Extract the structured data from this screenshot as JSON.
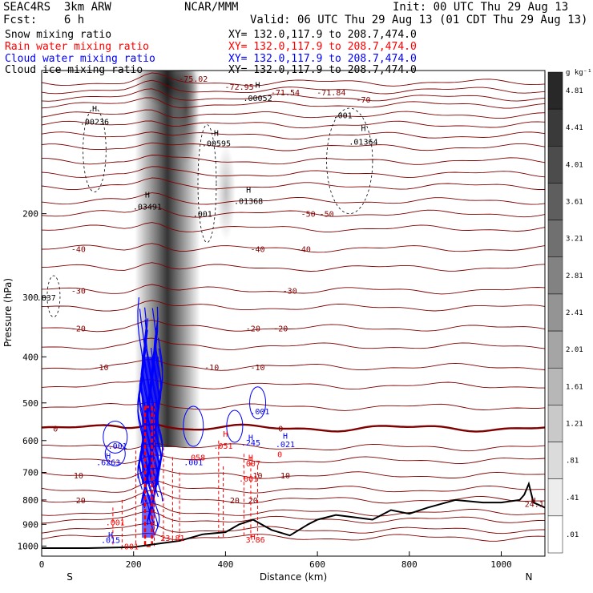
{
  "header": {
    "model": "SEAC4RS  3km ARW",
    "org": "NCAR/MMM",
    "init": "Init: 00 UTC Thu 29 Aug 13",
    "fcst": "Fcst:    6 h",
    "valid": "Valid: 06 UTC Thu 29 Aug 13 (01 CDT Thu 29 Aug 13)"
  },
  "fields": [
    {
      "label": "Snow mixing ratio",
      "xy": "XY= 132.0,117.9 to 208.7,474.0",
      "color": "#000000"
    },
    {
      "label": "Rain water mixing ratio",
      "xy": "XY= 132.0,117.9 to 208.7,474.0",
      "color": "#ff0000"
    },
    {
      "label": "Cloud water mixing ratio",
      "xy": "XY= 132.0,117.9 to 208.7,474.0",
      "color": "#0000ff"
    },
    {
      "label": "Cloud ice mixing ratio",
      "xy": "XY= 132.0,117.9 to 208.7,474.0",
      "color": "#000000"
    }
  ],
  "chart_data": {
    "type": "cross-section",
    "xlabel": "Distance (km)",
    "ylabel": "Pressure (hPa)",
    "xlim": [
      0,
      1095
    ],
    "ylim": [
      1050,
      100
    ],
    "y_log": true,
    "x_ticks": [
      0,
      200,
      400,
      600,
      800,
      1000
    ],
    "y_ticks": [
      200,
      300,
      400,
      500,
      600,
      700,
      800,
      900,
      1000
    ],
    "x_end_labels": {
      "left": "S",
      "right": "N"
    },
    "colorbar": {
      "unit": "g kg⁻¹",
      "labels": [
        "4.81",
        "4.41",
        "4.01",
        "3.61",
        "3.21",
        "2.81",
        "2.41",
        "2.01",
        "1.61",
        "1.21",
        ".81",
        ".41",
        ".01"
      ]
    },
    "temperature_isotherms": [
      {
        "label": "-72.95",
        "p": 108
      },
      {
        "label": "-71.54",
        "p": 111
      },
      {
        "label": "-71.84",
        "p": 111
      },
      {
        "label": "-70",
        "p": 115
      },
      {
        "label": "-75.02",
        "p": 104
      },
      {
        "label": "-50",
        "p": 200
      },
      {
        "label": "-40",
        "p": 237
      },
      {
        "label": "-30",
        "p": 290
      },
      {
        "label": "-20",
        "p": 348
      },
      {
        "label": "-10",
        "p": 420
      },
      {
        "label": "0",
        "p": 565
      },
      {
        "label": "10",
        "p": 710
      },
      {
        "label": "20",
        "p": 800
      }
    ],
    "terrain": [
      [
        0,
        1010
      ],
      [
        100,
        1010
      ],
      [
        200,
        1005
      ],
      [
        250,
        990
      ],
      [
        300,
        975
      ],
      [
        350,
        945
      ],
      [
        400,
        935
      ],
      [
        430,
        900
      ],
      [
        460,
        880
      ],
      [
        500,
        925
      ],
      [
        540,
        950
      ],
      [
        580,
        900
      ],
      [
        600,
        880
      ],
      [
        640,
        860
      ],
      [
        680,
        870
      ],
      [
        720,
        880
      ],
      [
        760,
        840
      ],
      [
        800,
        855
      ],
      [
        840,
        830
      ],
      [
        860,
        820
      ],
      [
        900,
        800
      ],
      [
        960,
        810
      ],
      [
        1000,
        810
      ],
      [
        1040,
        800
      ],
      [
        1050,
        780
      ],
      [
        1060,
        740
      ],
      [
        1070,
        810
      ],
      [
        1095,
        830
      ]
    ],
    "annotations": [
      {
        "text": "H",
        "x": 115,
        "p": 120,
        "color": "#000000"
      },
      {
        "text": ".00236",
        "x": 115,
        "p": 128,
        "color": "#000000"
      },
      {
        "text": "H",
        "x": 380,
        "p": 135,
        "color": "#000000"
      },
      {
        "text": ".00595",
        "x": 380,
        "p": 142,
        "color": "#000000"
      },
      {
        "text": "H",
        "x": 470,
        "p": 107,
        "color": "#000000"
      },
      {
        "text": ".00052",
        "x": 470,
        "p": 114,
        "color": "#000000"
      },
      {
        "text": ".001",
        "x": 655,
        "p": 124,
        "color": "#000000"
      },
      {
        "text": "H",
        "x": 700,
        "p": 132,
        "color": "#000000"
      },
      {
        "text": ".01364",
        "x": 700,
        "p": 141,
        "color": "#000000"
      },
      {
        "text": "H",
        "x": 450,
        "p": 178,
        "color": "#000000"
      },
      {
        "text": ".01368",
        "x": 450,
        "p": 188,
        "color": "#000000"
      },
      {
        "text": "H",
        "x": 230,
        "p": 182,
        "color": "#000000"
      },
      {
        "text": ".03491",
        "x": 230,
        "p": 193,
        "color": "#000000"
      },
      {
        "text": ".837",
        "x": 10,
        "p": 300,
        "color": "#000000"
      },
      {
        "text": ".001",
        "x": 350,
        "p": 200,
        "color": "#000000"
      },
      {
        "text": "H",
        "x": 400,
        "p": 580,
        "color": "#ff0000"
      },
      {
        "text": ".051",
        "x": 395,
        "p": 615,
        "color": "#ff0000"
      },
      {
        "text": "H",
        "x": 455,
        "p": 590,
        "color": "#0000ff"
      },
      {
        "text": ".245",
        "x": 455,
        "p": 605,
        "color": "#0000ff"
      },
      {
        "text": "H",
        "x": 530,
        "p": 585,
        "color": "#0000ff"
      },
      {
        "text": ".021",
        "x": 530,
        "p": 610,
        "color": "#0000ff"
      },
      {
        "text": ".001",
        "x": 475,
        "p": 520,
        "color": "#0000ff"
      },
      {
        "text": ".001",
        "x": 165,
        "p": 615,
        "color": "#0000ff"
      },
      {
        "text": "H",
        "x": 145,
        "p": 645,
        "color": "#0000ff"
      },
      {
        "text": ".6263",
        "x": 145,
        "p": 665,
        "color": "#0000ff"
      },
      {
        "text": ".001",
        "x": 330,
        "p": 665,
        "color": "#0000ff"
      },
      {
        "text": ".058",
        "x": 335,
        "p": 650,
        "color": "#ff0000"
      },
      {
        "text": "H",
        "x": 455,
        "p": 650,
        "color": "#ff0000"
      },
      {
        "text": ".007",
        "x": 455,
        "p": 670,
        "color": "#ff0000"
      },
      {
        "text": ".001",
        "x": 450,
        "p": 720,
        "color": "#ff0000"
      },
      {
        "text": "0",
        "x": 518,
        "p": 640,
        "color": "#ff0000"
      },
      {
        "text": ".001",
        "x": 160,
        "p": 890,
        "color": "#ff0000"
      },
      {
        "text": "H",
        "x": 150,
        "p": 945,
        "color": "#0000ff"
      },
      {
        "text": ".015",
        "x": 150,
        "p": 970,
        "color": "#0000ff"
      },
      {
        "text": ".001",
        "x": 190,
        "p": 1000,
        "color": "#ff0000"
      },
      {
        "text": "H",
        "x": 460,
        "p": 955,
        "color": "#ff0000"
      },
      {
        "text": "3.86",
        "x": 465,
        "p": 968,
        "color": "#ff0000"
      },
      {
        "text": "23.81",
        "x": 285,
        "p": 960,
        "color": "#ff0000"
      },
      {
        "text": "H",
        "x": 1070,
        "p": 800,
        "color": "#800000"
      },
      {
        "text": "24.1",
        "x": 1072,
        "p": 815,
        "color": "#800000"
      }
    ]
  }
}
